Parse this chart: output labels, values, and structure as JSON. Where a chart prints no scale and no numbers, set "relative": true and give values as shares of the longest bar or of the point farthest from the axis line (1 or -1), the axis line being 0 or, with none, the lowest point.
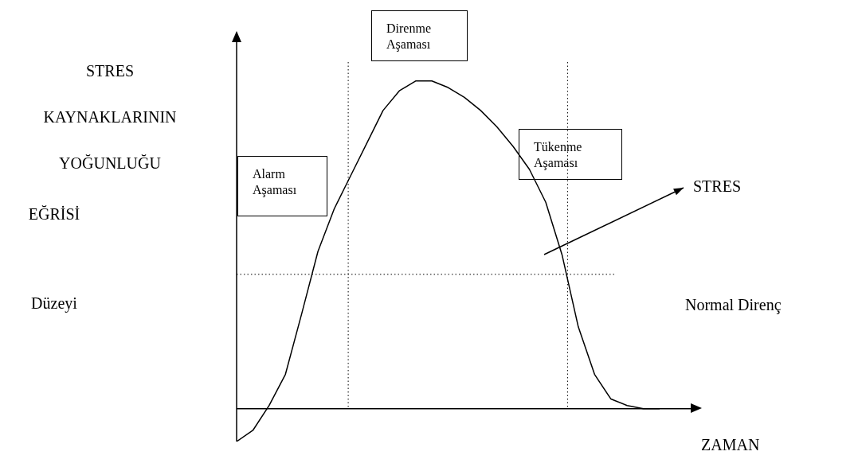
{
  "chart_data": {
    "type": "line",
    "relative": true,
    "ylabel": "STRES KAYNAKLARININ YOĞUNLUĞU",
    "xlabel": "ZAMAN",
    "categories": [
      null,
      null,
      null,
      null,
      null,
      null,
      null,
      null,
      null,
      null,
      null,
      null,
      null,
      null,
      null,
      null,
      null,
      null,
      null,
      null,
      null,
      null,
      null,
      null,
      null,
      null,
      null
    ],
    "values": [
      -0.1,
      -0.066,
      0.01,
      0.105,
      0.29,
      0.48,
      0.61,
      0.71,
      0.81,
      0.91,
      0.97,
      1.0,
      1.0,
      0.98,
      0.95,
      0.91,
      0.86,
      0.8,
      0.73,
      0.63,
      0.47,
      0.25,
      0.105,
      0.03,
      0.01,
      0,
      0
    ],
    "color": "#000000",
    "legend": false,
    "marker": "none",
    "line_style": "solid",
    "ref_lines": [
      {
        "axis": "y",
        "value": 0.41,
        "label": "Normal Direnç",
        "line_style": "dotted",
        "color": "#000000"
      }
    ],
    "annotations": [
      "EĞRİSİ",
      "Düzeyi",
      "STRES",
      "Alarm Aşaması",
      "Direnme Aşaması",
      "Tükenme Aşaması"
    ]
  }
}
